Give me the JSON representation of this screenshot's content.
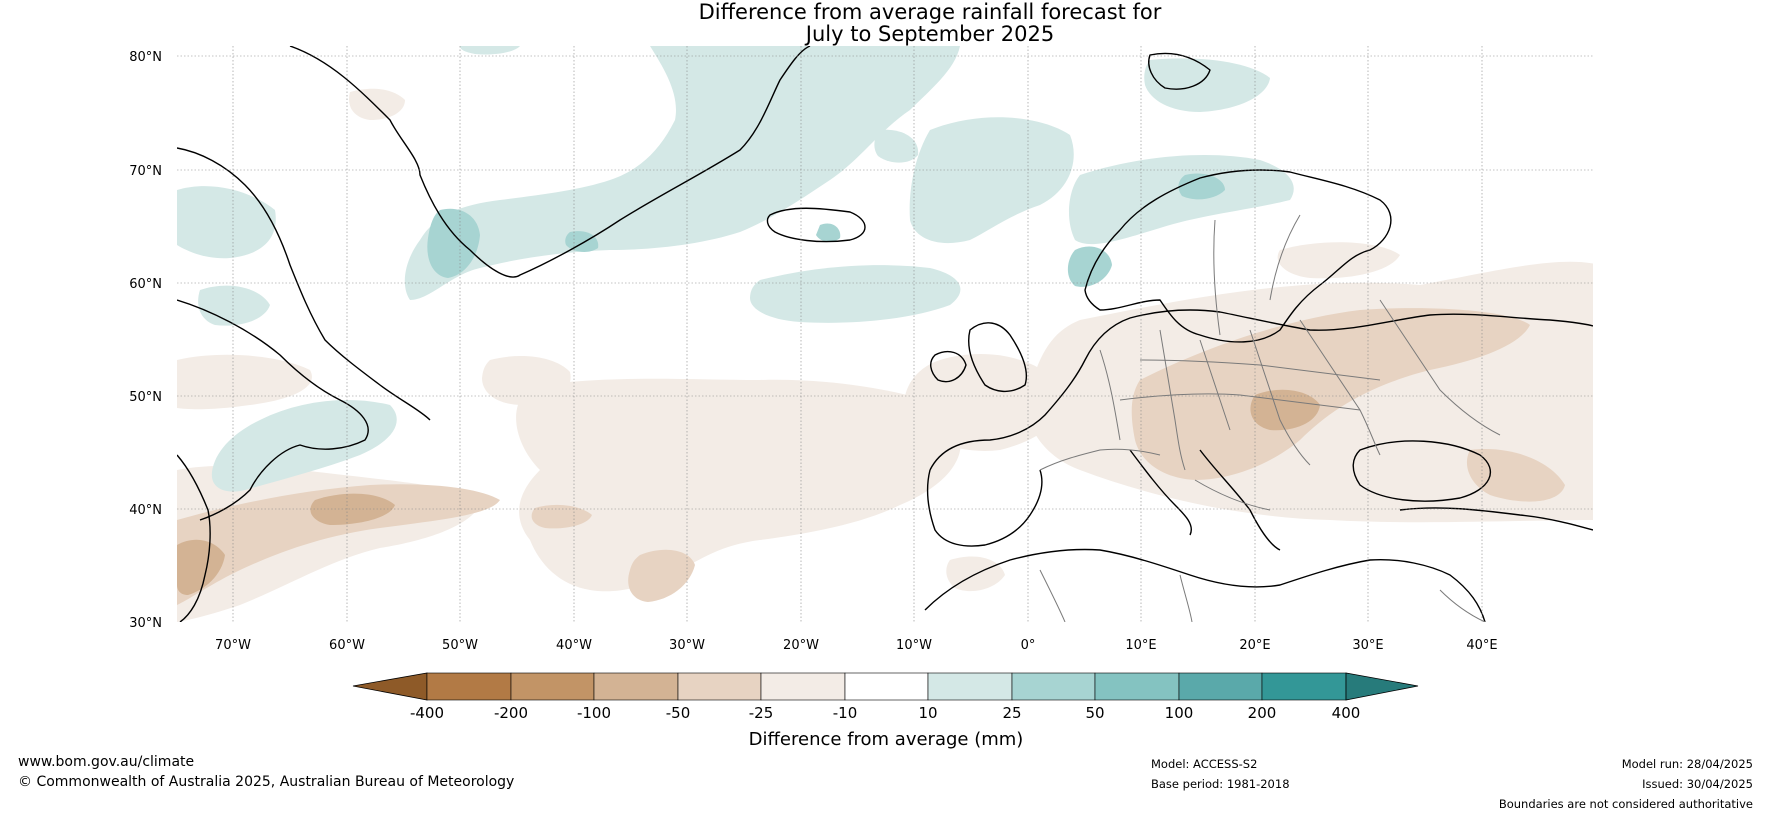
{
  "title": {
    "line1": "Difference from average rainfall forecast for",
    "line2": "July to September 2025"
  },
  "map": {
    "lat_labels": [
      "80°N",
      "70°N",
      "60°N",
      "50°N",
      "40°N",
      "30°N"
    ],
    "lon_labels": [
      "70°W",
      "60°W",
      "50°W",
      "40°W",
      "30°W",
      "20°W",
      "10°W",
      "0°",
      "10°E",
      "20°E",
      "30°E",
      "40°E"
    ],
    "colors": {
      "dry_light": "#f3ece6",
      "dry_mid": "#e7d3c2",
      "dry_strong": "#d3b394",
      "wet_light": "#d4e8e6",
      "wet_mid": "#a7d4d2",
      "coast": "#000000",
      "border": "#7a7a7a",
      "grid": "#888888"
    }
  },
  "colorbar": {
    "tick_labels": [
      "-400",
      "-200",
      "-100",
      "-50",
      "-25",
      "-10",
      "10",
      "25",
      "50",
      "100",
      "200",
      "400"
    ],
    "colors": [
      "#8e5a28",
      "#b27a45",
      "#c29466",
      "#d3b394",
      "#e7d3c2",
      "#f3ece6",
      "#ffffff",
      "#d4e8e6",
      "#a7d4d2",
      "#84c3c1",
      "#5aa9aa",
      "#339797",
      "#277b7b"
    ],
    "title": "Difference from average (mm)"
  },
  "footer": {
    "website": "www.bom.gov.au/climate",
    "copyright": "© Commonwealth of Australia 2025, Australian Bureau of Meteorology",
    "model": "Model: ACCESS-S2",
    "base_period": "Base period: 1981-2018",
    "model_run": "Model run: 28/04/2025",
    "issued": "Issued: 30/04/2025",
    "disclaimer": "Boundaries are not considered authoritative"
  }
}
